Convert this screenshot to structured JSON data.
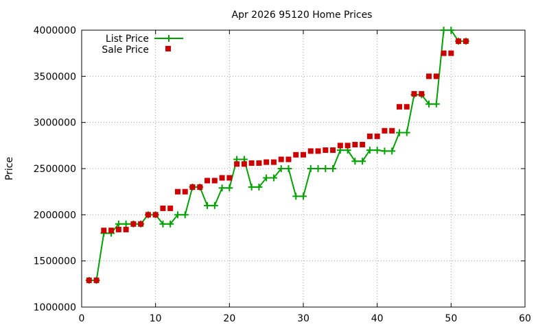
{
  "chart_data": {
    "type": "line",
    "title": "Apr 2026 95120 Home Prices",
    "xlabel": "",
    "ylabel": "Price",
    "xlim": [
      0,
      60
    ],
    "ylim": [
      1000000,
      4000000
    ],
    "x_ticks": [
      0,
      10,
      20,
      30,
      40,
      50,
      60
    ],
    "y_ticks": [
      1000000,
      1500000,
      2000000,
      2500000,
      3000000,
      3500000,
      4000000
    ],
    "grid": true,
    "legend_position": "top-left",
    "series": [
      {
        "name": "List Price",
        "style": "line-points",
        "color": "#00a000",
        "x": [
          1,
          2,
          3,
          4,
          5,
          6,
          7,
          8,
          9,
          10,
          11,
          12,
          13,
          14,
          15,
          16,
          17,
          18,
          19,
          20,
          21,
          22,
          23,
          24,
          25,
          26,
          27,
          28,
          29,
          30,
          31,
          32,
          33,
          34,
          35,
          36,
          37,
          38,
          39,
          40,
          41,
          42,
          43,
          44,
          45,
          46,
          47,
          48,
          49,
          50,
          51,
          52
        ],
        "values": [
          1290000,
          1290000,
          1800000,
          1800000,
          1900000,
          1900000,
          1900000,
          1900000,
          2000000,
          2000000,
          1900000,
          1900000,
          2000000,
          2000000,
          2300000,
          2300000,
          2100000,
          2100000,
          2290000,
          2290000,
          2600000,
          2600000,
          2300000,
          2300000,
          2400000,
          2400000,
          2500000,
          2500000,
          2200000,
          2200000,
          2500000,
          2500000,
          2500000,
          2500000,
          2700000,
          2700000,
          2580000,
          2580000,
          2700000,
          2700000,
          2690000,
          2690000,
          2890000,
          2890000,
          3300000,
          3300000,
          3200000,
          3200000,
          4000000,
          4000000,
          3880000,
          3880000
        ]
      },
      {
        "name": "Sale Price",
        "style": "points",
        "color": "#cc0000",
        "x": [
          1,
          2,
          3,
          4,
          5,
          6,
          7,
          8,
          9,
          10,
          11,
          12,
          13,
          14,
          15,
          16,
          17,
          18,
          19,
          20,
          21,
          22,
          23,
          24,
          25,
          26,
          27,
          28,
          29,
          30,
          31,
          32,
          33,
          34,
          35,
          36,
          37,
          38,
          39,
          40,
          41,
          42,
          43,
          44,
          45,
          46,
          47,
          48,
          49,
          50,
          51,
          52
        ],
        "values": [
          1290000,
          1290000,
          1830000,
          1830000,
          1840000,
          1840000,
          1900000,
          1900000,
          2000000,
          2000000,
          2070000,
          2070000,
          2250000,
          2250000,
          2300000,
          2300000,
          2370000,
          2370000,
          2400000,
          2400000,
          2550000,
          2550000,
          2560000,
          2560000,
          2570000,
          2570000,
          2600000,
          2600000,
          2650000,
          2650000,
          2690000,
          2690000,
          2700000,
          2700000,
          2750000,
          2750000,
          2760000,
          2760000,
          2850000,
          2850000,
          2910000,
          2910000,
          3170000,
          3170000,
          3310000,
          3310000,
          3500000,
          3500000,
          3750000,
          3750000,
          3880000,
          3880000
        ]
      }
    ]
  }
}
